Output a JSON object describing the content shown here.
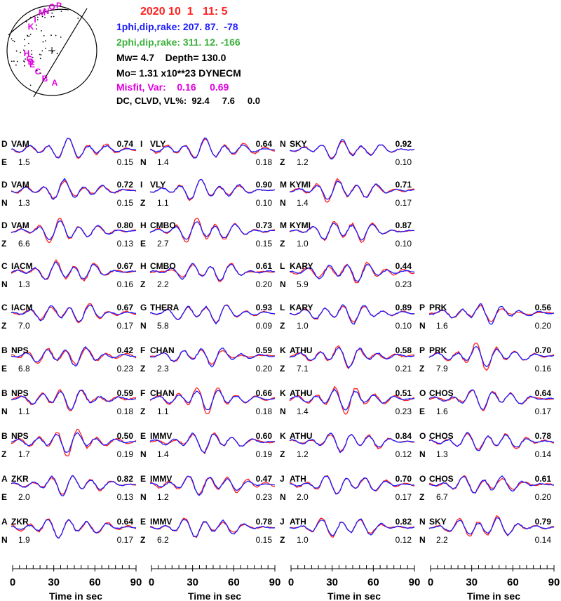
{
  "header": {
    "date": "2020 10  1   11: 5",
    "phi1_label": "1phi,dip,rake:",
    "phi1_value": "207. 87.  -78",
    "phi2_label": "2phi,dip,rake:",
    "phi2_value": "311. 12. -166",
    "mw_label": "Mw=",
    "mw_value": "4.7",
    "depth_label": "Depth=",
    "depth_value": "130.0",
    "mo_label": "Mo=",
    "mo_value": "1.31 x10**23 DYNECM",
    "misfit_label": "Misfit, Var:",
    "misfit_value": "0.16",
    "var_value": "0.69",
    "dc_label": "DC, CLVD, VL%:",
    "dc_value": "92.4",
    "clvd_value": "7.6",
    "vl_value": "0.0"
  },
  "beachball": {
    "station_labels": [
      "O",
      "P",
      "M",
      "N",
      "I",
      "K",
      "H",
      "G",
      "E",
      "D",
      "C",
      "B",
      "A"
    ]
  },
  "colors": {
    "observed": "#ff2020",
    "synthetic": "#1a1aff",
    "label": "#e000e0",
    "header_date": "#ff2020"
  },
  "axis": {
    "ticks": [
      "0",
      "30",
      "60",
      "90"
    ],
    "label": "Time  in sec"
  },
  "columns": [
    [
      {
        "letter": "D",
        "station": "VAM",
        "comp": "E",
        "value": "1.5",
        "corr": "0.74",
        "vr": "0.15"
      },
      {
        "letter": "D",
        "station": "VAM",
        "comp": "N",
        "value": "1.3",
        "corr": "0.72",
        "vr": "0.15"
      },
      {
        "letter": "D",
        "station": "VAM",
        "comp": "Z",
        "value": "6.6",
        "corr": "0.80",
        "vr": "0.13"
      },
      {
        "letter": "C",
        "station": "IACM",
        "comp": "N",
        "value": "1.3",
        "corr": "0.67",
        "vr": "0.16"
      },
      {
        "letter": "C",
        "station": "IACM",
        "comp": "Z",
        "value": "7.0",
        "corr": "0.67",
        "vr": "0.17"
      },
      {
        "letter": "B",
        "station": "NPS",
        "comp": "E",
        "value": "6.8",
        "corr": "0.42",
        "vr": "0.23"
      },
      {
        "letter": "B",
        "station": "NPS",
        "comp": "N",
        "value": "1.1",
        "corr": "0.59",
        "vr": "0.18"
      },
      {
        "letter": "B",
        "station": "NPS",
        "comp": "Z",
        "value": "1.7",
        "corr": "0.50",
        "vr": "0.19"
      },
      {
        "letter": "A",
        "station": "ZKR",
        "comp": "E",
        "value": "2.0",
        "corr": "0.82",
        "vr": "0.13"
      },
      {
        "letter": "A",
        "station": "ZKR",
        "comp": "N",
        "value": "1.9",
        "corr": "0.64",
        "vr": "0.17"
      }
    ],
    [
      {
        "letter": "I",
        "station": "VLY",
        "comp": "N",
        "value": "1.4",
        "corr": "0.64",
        "vr": "0.18"
      },
      {
        "letter": "I",
        "station": "VLY",
        "comp": "Z",
        "value": "1.1",
        "corr": "0.90",
        "vr": "0.10"
      },
      {
        "letter": "H",
        "station": "CMBO",
        "comp": "E",
        "value": "2.7",
        "corr": "0.73",
        "vr": "0.15"
      },
      {
        "letter": "H",
        "station": "CMBO",
        "comp": "Z",
        "value": "2.2",
        "corr": "0.61",
        "vr": "0.20"
      },
      {
        "letter": "G",
        "station": "THERA",
        "comp": "N",
        "value": "5.8",
        "corr": "0.93",
        "vr": "0.09"
      },
      {
        "letter": "F",
        "station": "CHAN",
        "comp": "Z",
        "value": "2.3",
        "corr": "0.59",
        "vr": "0.20"
      },
      {
        "letter": "F",
        "station": "CHAN",
        "comp": "Z",
        "value": "1.1",
        "corr": "0.66",
        "vr": "0.18"
      },
      {
        "letter": "E",
        "station": "IMMV",
        "comp": "N",
        "value": "1.4",
        "corr": "0.60",
        "vr": "0.19"
      },
      {
        "letter": "E",
        "station": "IMMV",
        "comp": "N",
        "value": "1.2",
        "corr": "0.47",
        "vr": "0.23"
      },
      {
        "letter": "E",
        "station": "IMMV",
        "comp": "Z",
        "value": "6.2",
        "corr": "0.78",
        "vr": "0.15"
      }
    ],
    [
      {
        "letter": "N",
        "station": "SKY",
        "comp": "Z",
        "value": "1.2",
        "corr": "0.92",
        "vr": "0.10"
      },
      {
        "letter": "M",
        "station": "KYMI",
        "comp": "N",
        "value": "1.4",
        "corr": "0.71",
        "vr": "0.17"
      },
      {
        "letter": "M",
        "station": "KYMI",
        "comp": "Z",
        "value": "1.0",
        "corr": "0.87",
        "vr": "0.10"
      },
      {
        "letter": "L",
        "station": "KARY",
        "comp": "N",
        "value": "5.9",
        "corr": "0.44",
        "vr": "0.23"
      },
      {
        "letter": "L",
        "station": "KARY",
        "comp": "Z",
        "value": "1.0",
        "corr": "0.89",
        "vr": "0.10"
      },
      {
        "letter": "K",
        "station": "ATHU",
        "comp": "Z",
        "value": "7.1",
        "corr": "0.58",
        "vr": "0.21"
      },
      {
        "letter": "K",
        "station": "ATHU",
        "comp": "N",
        "value": "1.4",
        "corr": "0.51",
        "vr": "0.23"
      },
      {
        "letter": "K",
        "station": "ATHU",
        "comp": "Z",
        "value": "1.2",
        "corr": "0.84",
        "vr": "0.12"
      },
      {
        "letter": "J",
        "station": "ATH",
        "comp": "N",
        "value": "2.0",
        "corr": "0.70",
        "vr": "0.17"
      },
      {
        "letter": "J",
        "station": "ATH",
        "comp": "Z",
        "value": "1.0",
        "corr": "0.82",
        "vr": "0.12"
      }
    ],
    [
      null,
      null,
      null,
      null,
      {
        "letter": "P",
        "station": "PRK",
        "comp": "N",
        "value": "1.6",
        "corr": "0.56",
        "vr": "0.20"
      },
      {
        "letter": "P",
        "station": "PRK",
        "comp": "Z",
        "value": "7.9",
        "corr": "0.70",
        "vr": "0.16"
      },
      {
        "letter": "O",
        "station": "CHOS",
        "comp": "E",
        "value": "1.6",
        "corr": "0.64",
        "vr": "0.17"
      },
      {
        "letter": "O",
        "station": "CHOS",
        "comp": "N",
        "value": "1.3",
        "corr": "0.78",
        "vr": "0.14"
      },
      {
        "letter": "O",
        "station": "CHOS",
        "comp": "Z",
        "value": "6.7",
        "corr": "0.61",
        "vr": "0.20"
      },
      {
        "letter": "N",
        "station": "SKY",
        "comp": "N",
        "value": "2.2",
        "corr": "0.79",
        "vr": "0.14"
      }
    ]
  ]
}
